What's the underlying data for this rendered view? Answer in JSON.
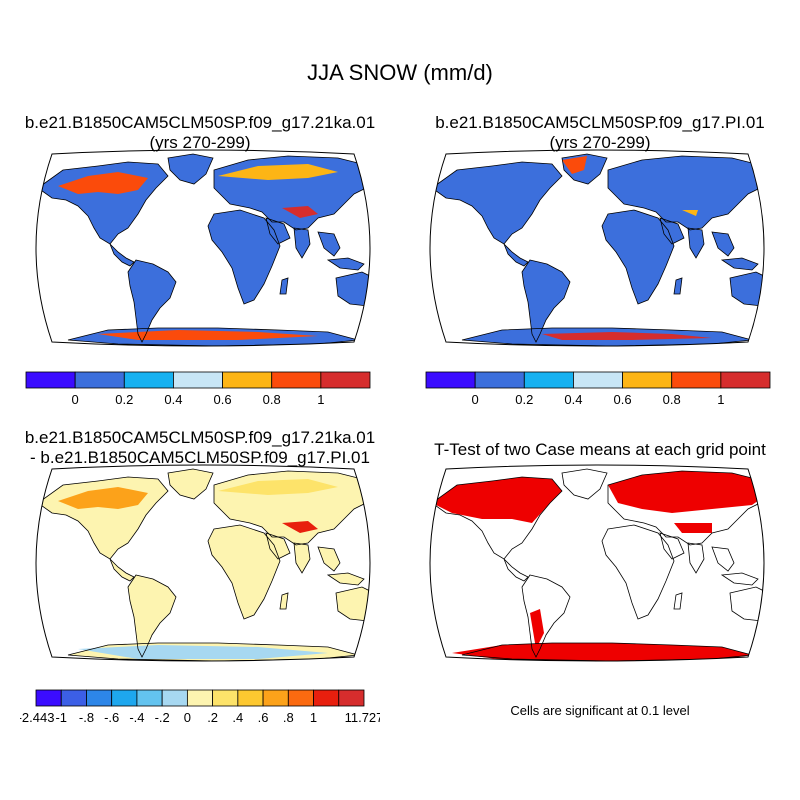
{
  "figure": {
    "title": "JJA SNOW (mm/d)",
    "note": "Cells are significant at 0.1 level"
  },
  "panels": [
    {
      "title_line1": "b.e21.B1850CAM5CLM50SP.f09_g17.21ka.01",
      "title_line2": "(yrs 270-299)"
    },
    {
      "title_line1": "b.e21.B1850CAM5CLM50SP.f09_g17.PI.01",
      "title_line2": "(yrs 270-299)"
    },
    {
      "title_line1": "b.e21.B1850CAM5CLM50SP.f09_g17.21ka.01",
      "title_line2": "- b.e21.B1850CAM5CLM50SP.f09_g17.PI.01"
    },
    {
      "title_line1": "T-Test of two Case means at each grid point",
      "title_line2": ""
    }
  ],
  "chart_data": [
    {
      "type": "heatmap",
      "panel": 1,
      "title": "b.e21.B1850CAM5CLM50SP.f09_g17.21ka.01 (yrs 270-299)",
      "colorbar": {
        "colors": [
          "#3b0cff",
          "#3c6fdc",
          "#17b1f0",
          "#c8e6f6",
          "#fdb515",
          "#fb4b0b",
          "#d62d2d"
        ],
        "labels": [
          "0",
          "0.2",
          "0.4",
          "0.6",
          "0.8",
          "1"
        ]
      }
    },
    {
      "type": "heatmap",
      "panel": 2,
      "title": "b.e21.B1850CAM5CLM50SP.f09_g17.PI.01 (yrs 270-299)",
      "colorbar": {
        "colors": [
          "#3b0cff",
          "#3c6fdc",
          "#17b1f0",
          "#c8e6f6",
          "#fdb515",
          "#fb4b0b",
          "#d62d2d"
        ],
        "labels": [
          "0",
          "0.2",
          "0.4",
          "0.6",
          "0.8",
          "1"
        ]
      }
    },
    {
      "type": "heatmap",
      "panel": 3,
      "title": "b.e21.B1850CAM5CLM50SP.f09_g17.21ka.01 - b.e21.B1850CAM5CLM50SP.f09_g17.PI.01",
      "colorbar": {
        "colors": [
          "#3b0cff",
          "#3c5fe6",
          "#2d86e8",
          "#1ea7ee",
          "#63c3ef",
          "#a7d8f1",
          "#fdf4b0",
          "#fde36a",
          "#fdc830",
          "#fca21a",
          "#fb6a10",
          "#e81f0e",
          "#d62d2d"
        ],
        "labels": [
          "-2.443",
          "-1",
          "-.8",
          "-.6",
          "-.4",
          "-.2",
          "0",
          ".2",
          ".4",
          ".6",
          ".8",
          "1",
          "11.727"
        ]
      }
    },
    {
      "type": "heatmap",
      "panel": 4,
      "title": "T-Test of two Case means at each grid point",
      "significant_color": "#ee0000"
    }
  ],
  "colors": {
    "land_base_snow": "#3c6fdc",
    "land_base_diff": "#fdf4b0",
    "outline": "#000000"
  }
}
